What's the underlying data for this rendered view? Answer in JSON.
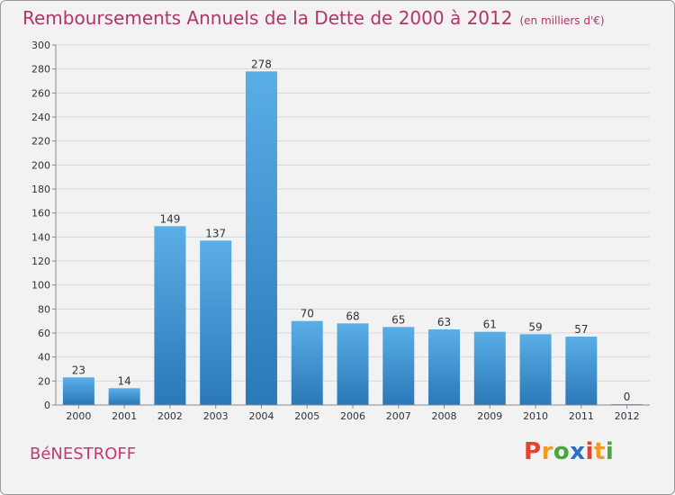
{
  "header": {
    "title": "Remboursements Annuels de la Dette de 2000 à 2012",
    "unit": "(en milliers d'€)"
  },
  "footer": {
    "town": "BéNESTROFF",
    "logo_letters": [
      "P",
      "r",
      "o",
      "x",
      "i",
      "t",
      "i"
    ]
  },
  "colors": {
    "title": "#b2356a",
    "bar_light": "#5aaee6",
    "bar_dark": "#2a78b8",
    "logo": [
      "#e8402f",
      "#f29a1f",
      "#4aa53c",
      "#2b6fc0",
      "#e8402f",
      "#f29a1f",
      "#4aa53c"
    ]
  },
  "chart_data": {
    "type": "bar",
    "title": "Remboursements Annuels de la Dette de 2000 à 2012",
    "xlabel": "",
    "ylabel": "",
    "categories": [
      "2000",
      "2001",
      "2002",
      "2003",
      "2004",
      "2005",
      "2006",
      "2007",
      "2008",
      "2009",
      "2010",
      "2011",
      "2012"
    ],
    "values": [
      23,
      14,
      149,
      137,
      278,
      70,
      68,
      65,
      63,
      61,
      59,
      57,
      0
    ],
    "value_labels": [
      "23",
      "14",
      "149",
      "137",
      "278",
      "70",
      "68",
      "65",
      "63",
      "61",
      "59",
      "57",
      "0"
    ],
    "ylim": [
      0,
      300
    ],
    "yticks": [
      0,
      20,
      40,
      60,
      80,
      100,
      120,
      140,
      160,
      180,
      200,
      220,
      240,
      260,
      280,
      300
    ],
    "ytick_labels": [
      "0",
      "20",
      "40",
      "60",
      "80",
      "100",
      "120",
      "140",
      "160",
      "180",
      "200",
      "220",
      "240",
      "260",
      "280",
      "300"
    ],
    "grid": "horizontal"
  }
}
